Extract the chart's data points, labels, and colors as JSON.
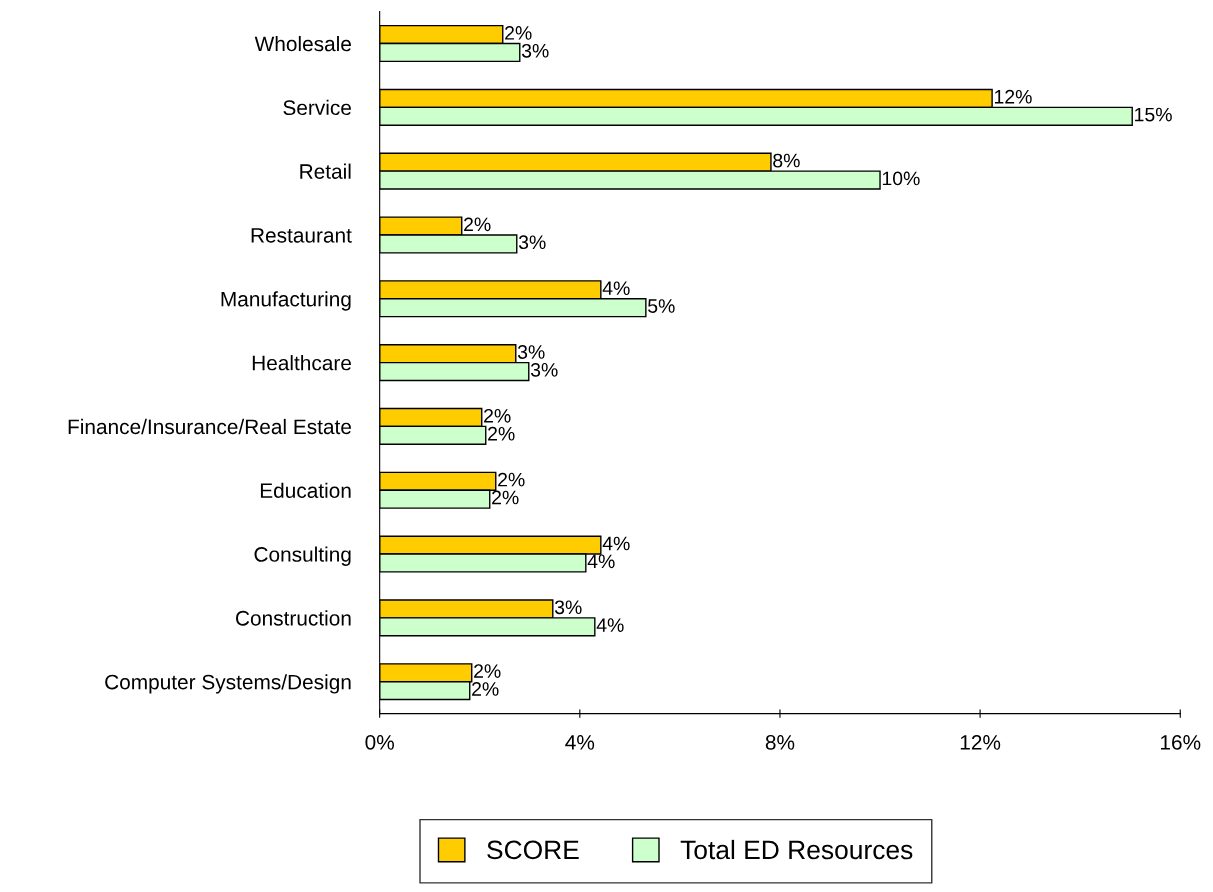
{
  "chart_data": {
    "type": "bar",
    "orientation": "horizontal",
    "categories": [
      "Wholesale",
      "Service",
      "Retail",
      "Restaurant",
      "Manufacturing",
      "Healthcare",
      "Finance/Insurance/Real Estate",
      "Education",
      "Consulting",
      "Construction",
      "Computer Systems/Design"
    ],
    "series": [
      {
        "name": "SCORE",
        "color": "#ffcc00",
        "values": [
          2.46,
          12.24,
          7.82,
          1.64,
          4.42,
          2.72,
          2.04,
          2.32,
          4.42,
          3.46,
          1.84
        ],
        "value_labels": [
          "2%",
          "12%",
          "8%",
          "2%",
          "4%",
          "3%",
          "2%",
          "2%",
          "4%",
          "3%",
          "2%"
        ]
      },
      {
        "name": "Total ED Resources",
        "color": "#ccffcc",
        "values": [
          2.8,
          15.04,
          10.0,
          2.74,
          5.32,
          2.98,
          2.12,
          2.2,
          4.12,
          4.3,
          1.8
        ],
        "value_labels": [
          "3%",
          "15%",
          "10%",
          "3%",
          "5%",
          "3%",
          "2%",
          "2%",
          "4%",
          "4%",
          "2%"
        ]
      }
    ],
    "xlim": [
      0,
      16
    ],
    "xticks": [
      {
        "value": 0,
        "label": "0%"
      },
      {
        "value": 4,
        "label": "4%"
      },
      {
        "value": 8,
        "label": "8%"
      },
      {
        "value": 12,
        "label": "12%"
      },
      {
        "value": 16,
        "label": "16%"
      }
    ],
    "grid": false,
    "legend": "bottom"
  }
}
